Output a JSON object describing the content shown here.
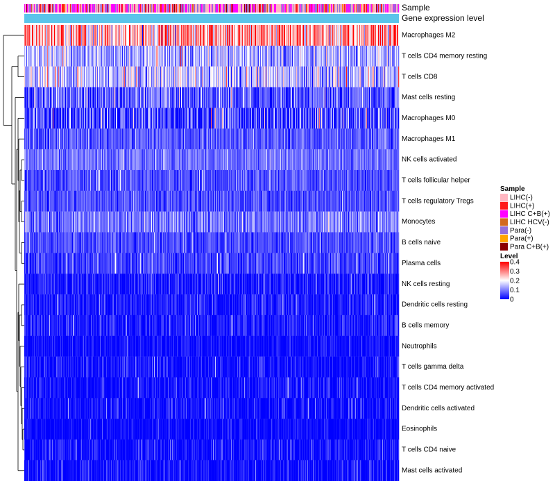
{
  "chart_data": {
    "type": "heatmap",
    "title": "",
    "annotations": [
      {
        "name": "Sample"
      },
      {
        "name": "Gene expression level",
        "color": "#5bc4ea"
      }
    ],
    "rows": [
      {
        "label": "Macrophages M2",
        "mean": 0.27,
        "spread": 0.08
      },
      {
        "label": "T cells CD4 memory resting",
        "mean": 0.13,
        "spread": 0.05
      },
      {
        "label": "T cells CD8",
        "mean": 0.15,
        "spread": 0.06
      },
      {
        "label": "Mast cells resting",
        "mean": 0.07,
        "spread": 0.05
      },
      {
        "label": "Macrophages M0",
        "mean": 0.05,
        "spread": 0.07
      },
      {
        "label": "Macrophages M1",
        "mean": 0.07,
        "spread": 0.03
      },
      {
        "label": "NK cells activated",
        "mean": 0.09,
        "spread": 0.03
      },
      {
        "label": "T cells follicular helper",
        "mean": 0.06,
        "spread": 0.03
      },
      {
        "label": "T cells regulatory  Tregs",
        "mean": 0.06,
        "spread": 0.03
      },
      {
        "label": "Monocytes",
        "mean": 0.09,
        "spread": 0.04
      },
      {
        "label": "B cells naive",
        "mean": 0.06,
        "spread": 0.03
      },
      {
        "label": "Plasma cells",
        "mean": 0.05,
        "spread": 0.03
      },
      {
        "label": "NK cells resting",
        "mean": 0.02,
        "spread": 0.03
      },
      {
        "label": "Dendritic cells resting",
        "mean": 0.02,
        "spread": 0.03
      },
      {
        "label": "B cells memory",
        "mean": 0.02,
        "spread": 0.03
      },
      {
        "label": "Neutrophils",
        "mean": 0.01,
        "spread": 0.02
      },
      {
        "label": "T cells gamma delta",
        "mean": 0.01,
        "spread": 0.03
      },
      {
        "label": "T cells CD4 memory activated",
        "mean": 0.01,
        "spread": 0.03
      },
      {
        "label": "Dendritic cells activated",
        "mean": 0.01,
        "spread": 0.03
      },
      {
        "label": "Eosinophils",
        "mean": 0.005,
        "spread": 0.02
      },
      {
        "label": "T cells CD4 naive",
        "mean": 0.01,
        "spread": 0.03
      },
      {
        "label": "Mast cells activated",
        "mean": 0.01,
        "spread": 0.03
      }
    ],
    "legend": {
      "sample_title": "Sample",
      "sample_groups": [
        {
          "label": "LIHC(-)",
          "color": "#ffb6c1"
        },
        {
          "label": "LIHC(+)",
          "color": "#ff1a1a"
        },
        {
          "label": "LIHC C+B(+)",
          "color": "#ff00ff"
        },
        {
          "label": "LIHC HCV(-)",
          "color": "#d2691e"
        },
        {
          "label": "Para(-)",
          "color": "#9370db"
        },
        {
          "label": "Para(+)",
          "color": "#ffa500"
        },
        {
          "label": "Para C+B(+)",
          "color": "#8b0000"
        }
      ],
      "level_title": "Level",
      "level_ticks": [
        "0.4",
        "0.3",
        "0.2",
        "0.1",
        "0"
      ],
      "level_range": [
        0,
        0.4
      ]
    },
    "color_scale": {
      "low": "#0000ff",
      "mid": "#ffffff",
      "high": "#ff0000",
      "mid_value": 0.2
    },
    "n_columns": 540
  }
}
